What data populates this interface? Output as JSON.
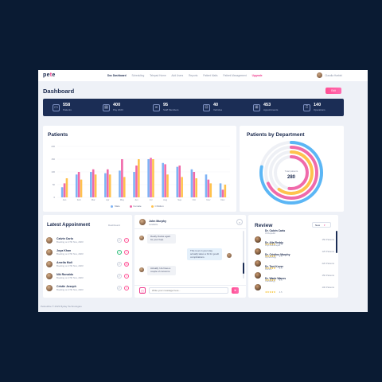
{
  "brand": {
    "name": "pe",
    "name_dot": "t",
    "name_end": "e"
  },
  "nav": {
    "items": [
      "Doc Dashboard",
      "Scheduling",
      "Telepad Home",
      "Add Users",
      "Reports",
      "Patient Mails",
      "Patient Management"
    ],
    "upgrade": "Upgrade",
    "user_name": "Claudia Harbini"
  },
  "page": {
    "title": "Dashboard",
    "edit_label": "Edit"
  },
  "stats": [
    {
      "icon": "bed-icon",
      "glyph": "▭",
      "value": "558",
      "label": "Patients"
    },
    {
      "icon": "calendar-icon",
      "glyph": "▤",
      "value": "400",
      "label": "Pay 2023"
    },
    {
      "icon": "staff-icon",
      "glyph": "∞",
      "value": "95",
      "label": "Staff Members"
    },
    {
      "icon": "ambulance-icon",
      "glyph": "⊡",
      "value": "40",
      "label": "Vehicles"
    },
    {
      "icon": "appointment-icon",
      "glyph": "⊞",
      "value": "453",
      "label": "Appointments"
    },
    {
      "icon": "operation-icon",
      "glyph": "♖",
      "value": "140",
      "label": "Operations"
    }
  ],
  "patients_card": {
    "title": "Patients"
  },
  "chart_data": {
    "type": "bar",
    "title": "Patients",
    "categories": [
      "Jan",
      "Feb",
      "Mar",
      "Apr",
      "May",
      "Jun",
      "Jul",
      "Aug",
      "Sep",
      "Oct",
      "Nov",
      "Dec"
    ],
    "yticks": [
      "200",
      "150",
      "100",
      "50",
      "0"
    ],
    "ylim": [
      0,
      200
    ],
    "series": [
      {
        "name": "Male",
        "color": "#7fb3f5",
        "values": [
          40,
          90,
          100,
          95,
          105,
          100,
          150,
          135,
          120,
          110,
          90,
          55
        ]
      },
      {
        "name": "Female",
        "color": "#f06aaa",
        "values": [
          55,
          100,
          110,
          110,
          150,
          125,
          155,
          130,
          125,
          100,
          70,
          30
        ]
      },
      {
        "name": "Children",
        "color": "#ffc24d",
        "values": [
          75,
          70,
          90,
          90,
          80,
          150,
          150,
          90,
          80,
          75,
          55,
          50
        ]
      }
    ]
  },
  "dept_card": {
    "title": "Patients by Department",
    "center_label": "Total patients",
    "center_value": "280"
  },
  "dept_rings": [
    {
      "color": "#5bb6f5",
      "fraction": 0.78
    },
    {
      "color": "#f06aaa",
      "fraction": 0.68
    },
    {
      "color": "#ffc24d",
      "fraction": 0.6
    },
    {
      "color": "#f06aaa",
      "fraction": 0.52
    }
  ],
  "appointments": {
    "title": "Latest Appoinment",
    "filter": "Dashboard",
    "rows": [
      {
        "name": "Calvin Carlo",
        "date": "Booking on 27th Nov, 2023",
        "status": "none"
      },
      {
        "name": "Joya Khan",
        "date": "Booking on 27th Nov, 2023",
        "status": "ok"
      },
      {
        "name": "Amelia Muli",
        "date": "Booking on 27th Nov, 2023",
        "status": "rejected"
      },
      {
        "name": "Nik Ronaldo",
        "date": "Booking on 27th Nov, 2023",
        "status": "none"
      },
      {
        "name": "Cristie Joseph",
        "date": "Booking on 27th Nov, 2023",
        "status": "none"
      }
    ]
  },
  "chat": {
    "contact_name": "John Murphy",
    "contact_status": "Available",
    "messages": [
      {
        "dir": "in",
        "text": "Really thanks again for your help."
      },
      {
        "dir": "out",
        "text": "This is an in your stay actually takes a bit for goodt complications."
      },
      {
        "dir": "in",
        "text": "Actually I do have a couple of concerns."
      }
    ],
    "input_placeholder": "Write your message here..."
  },
  "review": {
    "title": "Review",
    "filter": "New",
    "rows": [
      {
        "name": "Dr. Calvin Carlo",
        "spec": "Orthopedic",
        "stars": "★★★★★",
        "score": "4.5",
        "count": "150 Patients"
      },
      {
        "name": "Dr. Alia Reddy",
        "spec": "Psychotherapist",
        "stars": "★★★★★",
        "score": "4.5",
        "count": "125 Patients"
      },
      {
        "name": "Dr. Cristino Murphy",
        "spec": "Gynecology",
        "stars": "★★★★★",
        "score": "4.5",
        "count": "220 Patients"
      },
      {
        "name": "Dr. Toni Kover",
        "spec": "Dentist",
        "stars": "★★★★★",
        "score": "4.5",
        "count": "150 Patients"
      },
      {
        "name": "Dr. Wade Wanes",
        "spec": "Cardiology",
        "stars": "★★★★★",
        "score": "4.5",
        "count": "100 Patients"
      }
    ]
  },
  "footer": "Pettoubbe © 2023 Byday Technologies"
}
